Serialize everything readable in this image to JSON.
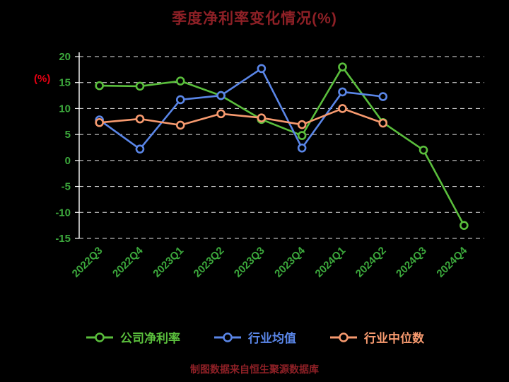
{
  "title": "季度净利率变化情况(%)",
  "y_axis_unit": "(%)",
  "footer_note": "制图数据来自恒生聚源数据库",
  "colors": {
    "background": "#000000",
    "title": "#8e2026",
    "y_unit_label": "#e60012",
    "axis_text": "#3ca83c",
    "grid": "#ffffff",
    "footer": "#8e2026"
  },
  "chart_data": {
    "type": "line",
    "title": "季度净利率变化情况(%)",
    "xlabel": "",
    "ylabel": "(%)",
    "ylim": [
      -15,
      20
    ],
    "yticks": [
      20,
      15,
      10,
      5,
      0,
      -5,
      -10,
      -15
    ],
    "grid": "dashed-horizontal",
    "legend_position": "bottom",
    "categories": [
      "2022Q3",
      "2022Q4",
      "2023Q1",
      "2023Q2",
      "2023Q3",
      "2023Q4",
      "2024Q1",
      "2024Q2",
      "2024Q3",
      "2024Q4"
    ],
    "series": [
      {
        "name": "公司净利率",
        "color": "#5abe3c",
        "values": [
          14.4,
          14.3,
          15.3,
          12.5,
          7.9,
          4.8,
          18.0,
          7.3,
          2.0,
          -12.5
        ]
      },
      {
        "name": "行业均值",
        "color": "#5a86e8",
        "values": [
          7.8,
          2.2,
          11.7,
          12.5,
          17.7,
          2.4,
          13.2,
          12.3,
          null,
          null
        ]
      },
      {
        "name": "行业中位数",
        "color": "#f79a6f",
        "values": [
          7.3,
          8.0,
          6.8,
          9.0,
          8.2,
          6.9,
          10.0,
          7.2,
          null,
          null
        ]
      }
    ]
  }
}
